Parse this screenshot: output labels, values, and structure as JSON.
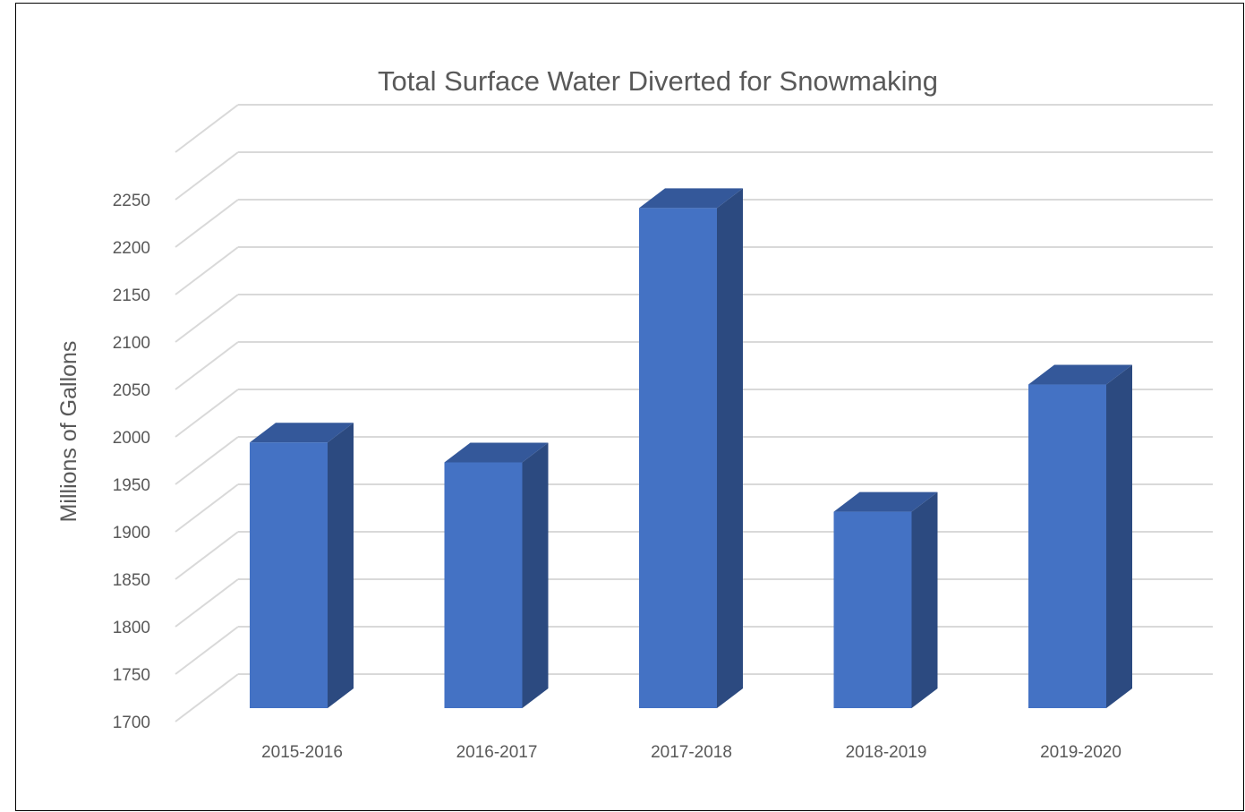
{
  "chart_data": {
    "type": "bar",
    "title": "Total Surface Water Diverted for Snowmaking",
    "ylabel": "Millions of Gallons",
    "xlabel": "",
    "categories": [
      "2015-2016",
      "2016-2017",
      "2017-2018",
      "2018-2019",
      "2019-2020"
    ],
    "values": [
      1980,
      1959,
      2227,
      1907,
      2041
    ],
    "ylim": [
      1700,
      2250
    ],
    "yticks": [
      "1700",
      "1750",
      "1800",
      "1850",
      "1900",
      "1950",
      "2000",
      "2050",
      "2100",
      "2150",
      "2200",
      "2250"
    ],
    "grid": true,
    "legend": "none",
    "three_d": true,
    "colors": {
      "bar_front": "#4472c4",
      "bar_side": "#2c4a80",
      "bar_top": "#34589a",
      "grid": "#d9d9d9",
      "text": "#595959"
    }
  }
}
